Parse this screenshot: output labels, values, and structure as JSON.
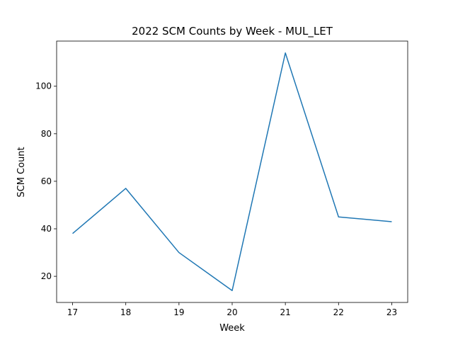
{
  "chart_data": {
    "type": "line",
    "title": "2022 SCM Counts by Week - MUL_LET",
    "xlabel": "Week",
    "ylabel": "SCM Count",
    "x": [
      17,
      18,
      19,
      20,
      21,
      22,
      23
    ],
    "series": [
      {
        "values": [
          38,
          57,
          30,
          14,
          114,
          45,
          43
        ]
      }
    ],
    "xlim": [
      16.7,
      23.3
    ],
    "ylim": [
      9,
      119
    ],
    "xticks": [
      17,
      18,
      19,
      20,
      21,
      22,
      23
    ],
    "yticks": [
      20,
      40,
      60,
      80,
      100
    ],
    "grid": false,
    "legend": "none",
    "line_color": "#1f77b4"
  }
}
